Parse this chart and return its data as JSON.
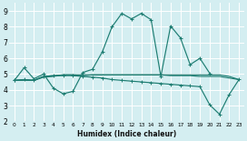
{
  "xlabel": "Humidex (Indice chaleur)",
  "bg_color": "#d4eef1",
  "grid_color": "#ffffff",
  "line_color": "#1e7d72",
  "xlim": [
    -0.5,
    23.5
  ],
  "ylim": [
    2.0,
    9.5
  ],
  "xticks": [
    0,
    1,
    2,
    3,
    4,
    5,
    6,
    7,
    8,
    9,
    10,
    11,
    12,
    13,
    14,
    15,
    16,
    17,
    18,
    19,
    20,
    21,
    22,
    23
  ],
  "yticks": [
    2,
    3,
    4,
    5,
    6,
    7,
    8,
    9
  ],
  "series": {
    "main": [
      4.6,
      5.4,
      4.7,
      5.0,
      4.1,
      3.75,
      3.9,
      5.1,
      5.3,
      6.4,
      8.0,
      8.85,
      8.5,
      8.85,
      8.45,
      4.85,
      8.05,
      7.3,
      5.6,
      6.0,
      5.05,
      null,
      null,
      null
    ],
    "flat1": [
      4.6,
      4.65,
      4.6,
      4.85,
      4.9,
      4.95,
      4.95,
      4.9,
      4.95,
      4.95,
      4.95,
      4.95,
      4.95,
      4.95,
      4.95,
      4.95,
      4.9,
      4.9,
      4.9,
      4.85,
      4.85,
      4.85,
      4.75,
      4.65
    ],
    "decreasing": [
      4.6,
      4.65,
      4.6,
      4.85,
      4.9,
      4.9,
      4.9,
      4.85,
      4.8,
      4.75,
      4.65,
      4.6,
      4.55,
      4.5,
      4.45,
      4.4,
      4.35,
      4.3,
      4.25,
      4.2,
      3.05,
      2.45,
      3.7,
      4.65
    ],
    "flat2": [
      4.6,
      4.6,
      4.6,
      4.8,
      4.85,
      4.95,
      4.95,
      4.95,
      4.95,
      4.95,
      4.95,
      4.95,
      4.95,
      4.95,
      4.95,
      4.95,
      4.95,
      4.95,
      4.95,
      4.95,
      4.95,
      4.95,
      4.85,
      4.65
    ]
  }
}
